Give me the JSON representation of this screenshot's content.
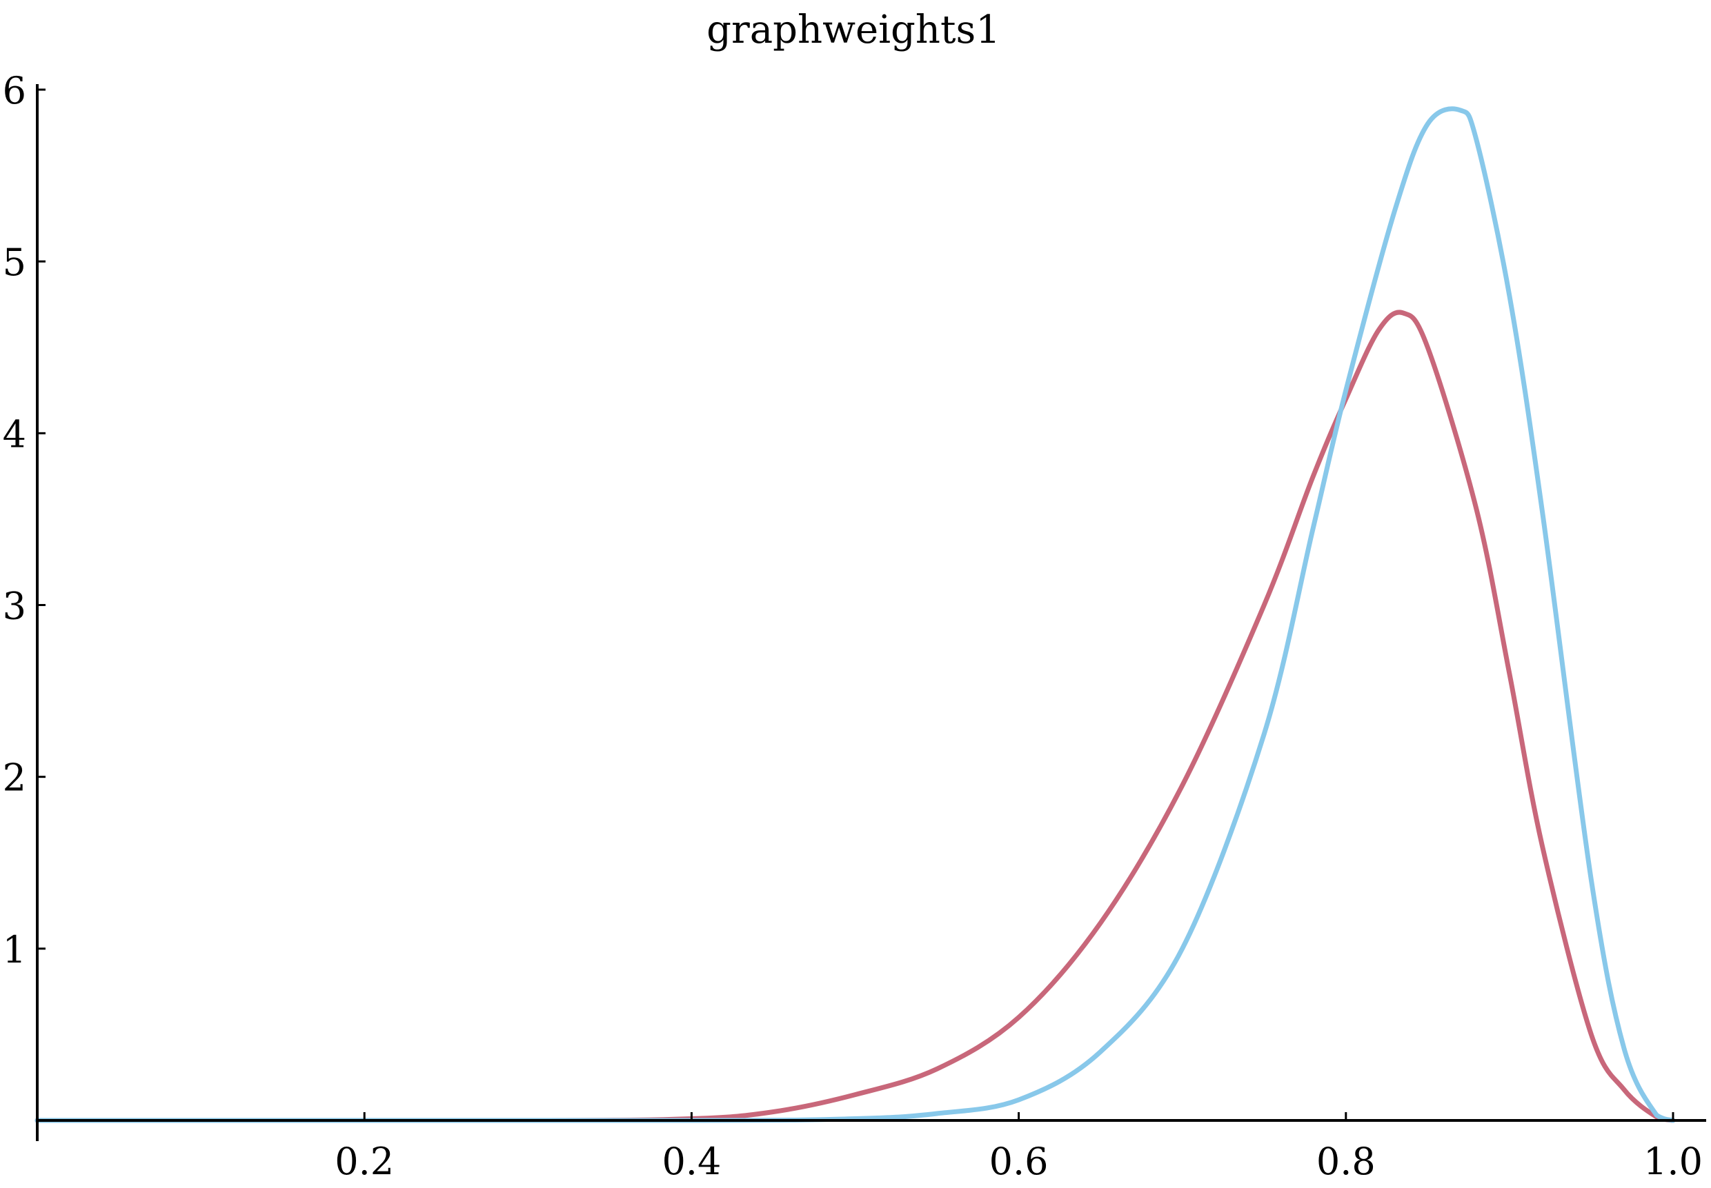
{
  "chart_data": {
    "type": "line",
    "title": "graphweights1",
    "xlabel": "",
    "ylabel": "",
    "xlim": [
      0.0,
      1.0
    ],
    "ylim": [
      0,
      6
    ],
    "x_ticks": [
      0.2,
      0.4,
      0.6,
      0.8,
      1.0
    ],
    "x_tick_labels": [
      "0.2",
      "0.4",
      "0.6",
      "0.8",
      "1.0"
    ],
    "y_ticks": [
      1,
      2,
      3,
      4,
      5,
      6
    ],
    "y_tick_labels": [
      "1",
      "2",
      "3",
      "4",
      "5",
      "6"
    ],
    "grid": false,
    "legend": "none",
    "series": [
      {
        "color": "#c8677a",
        "x": [
          0.0,
          0.3,
          0.4,
          0.45,
          0.5,
          0.55,
          0.6,
          0.65,
          0.7,
          0.75,
          0.78,
          0.8,
          0.82,
          0.835,
          0.85,
          0.88,
          0.9,
          0.92,
          0.95,
          0.97,
          0.99,
          1.0
        ],
        "y": [
          0.0,
          0.0,
          0.01,
          0.05,
          0.15,
          0.3,
          0.6,
          1.15,
          1.95,
          3.0,
          3.75,
          4.2,
          4.6,
          4.7,
          4.5,
          3.55,
          2.6,
          1.6,
          0.5,
          0.18,
          0.02,
          0.0
        ]
      },
      {
        "color": "#88c8ea",
        "x": [
          0.0,
          0.4,
          0.5,
          0.55,
          0.6,
          0.65,
          0.7,
          0.75,
          0.78,
          0.8,
          0.83,
          0.85,
          0.87,
          0.88,
          0.9,
          0.92,
          0.95,
          0.97,
          0.99,
          1.0
        ],
        "y": [
          0.0,
          0.0,
          0.01,
          0.04,
          0.12,
          0.4,
          1.0,
          2.25,
          3.45,
          4.25,
          5.3,
          5.8,
          5.88,
          5.7,
          4.8,
          3.55,
          1.4,
          0.42,
          0.03,
          0.0
        ]
      }
    ]
  }
}
